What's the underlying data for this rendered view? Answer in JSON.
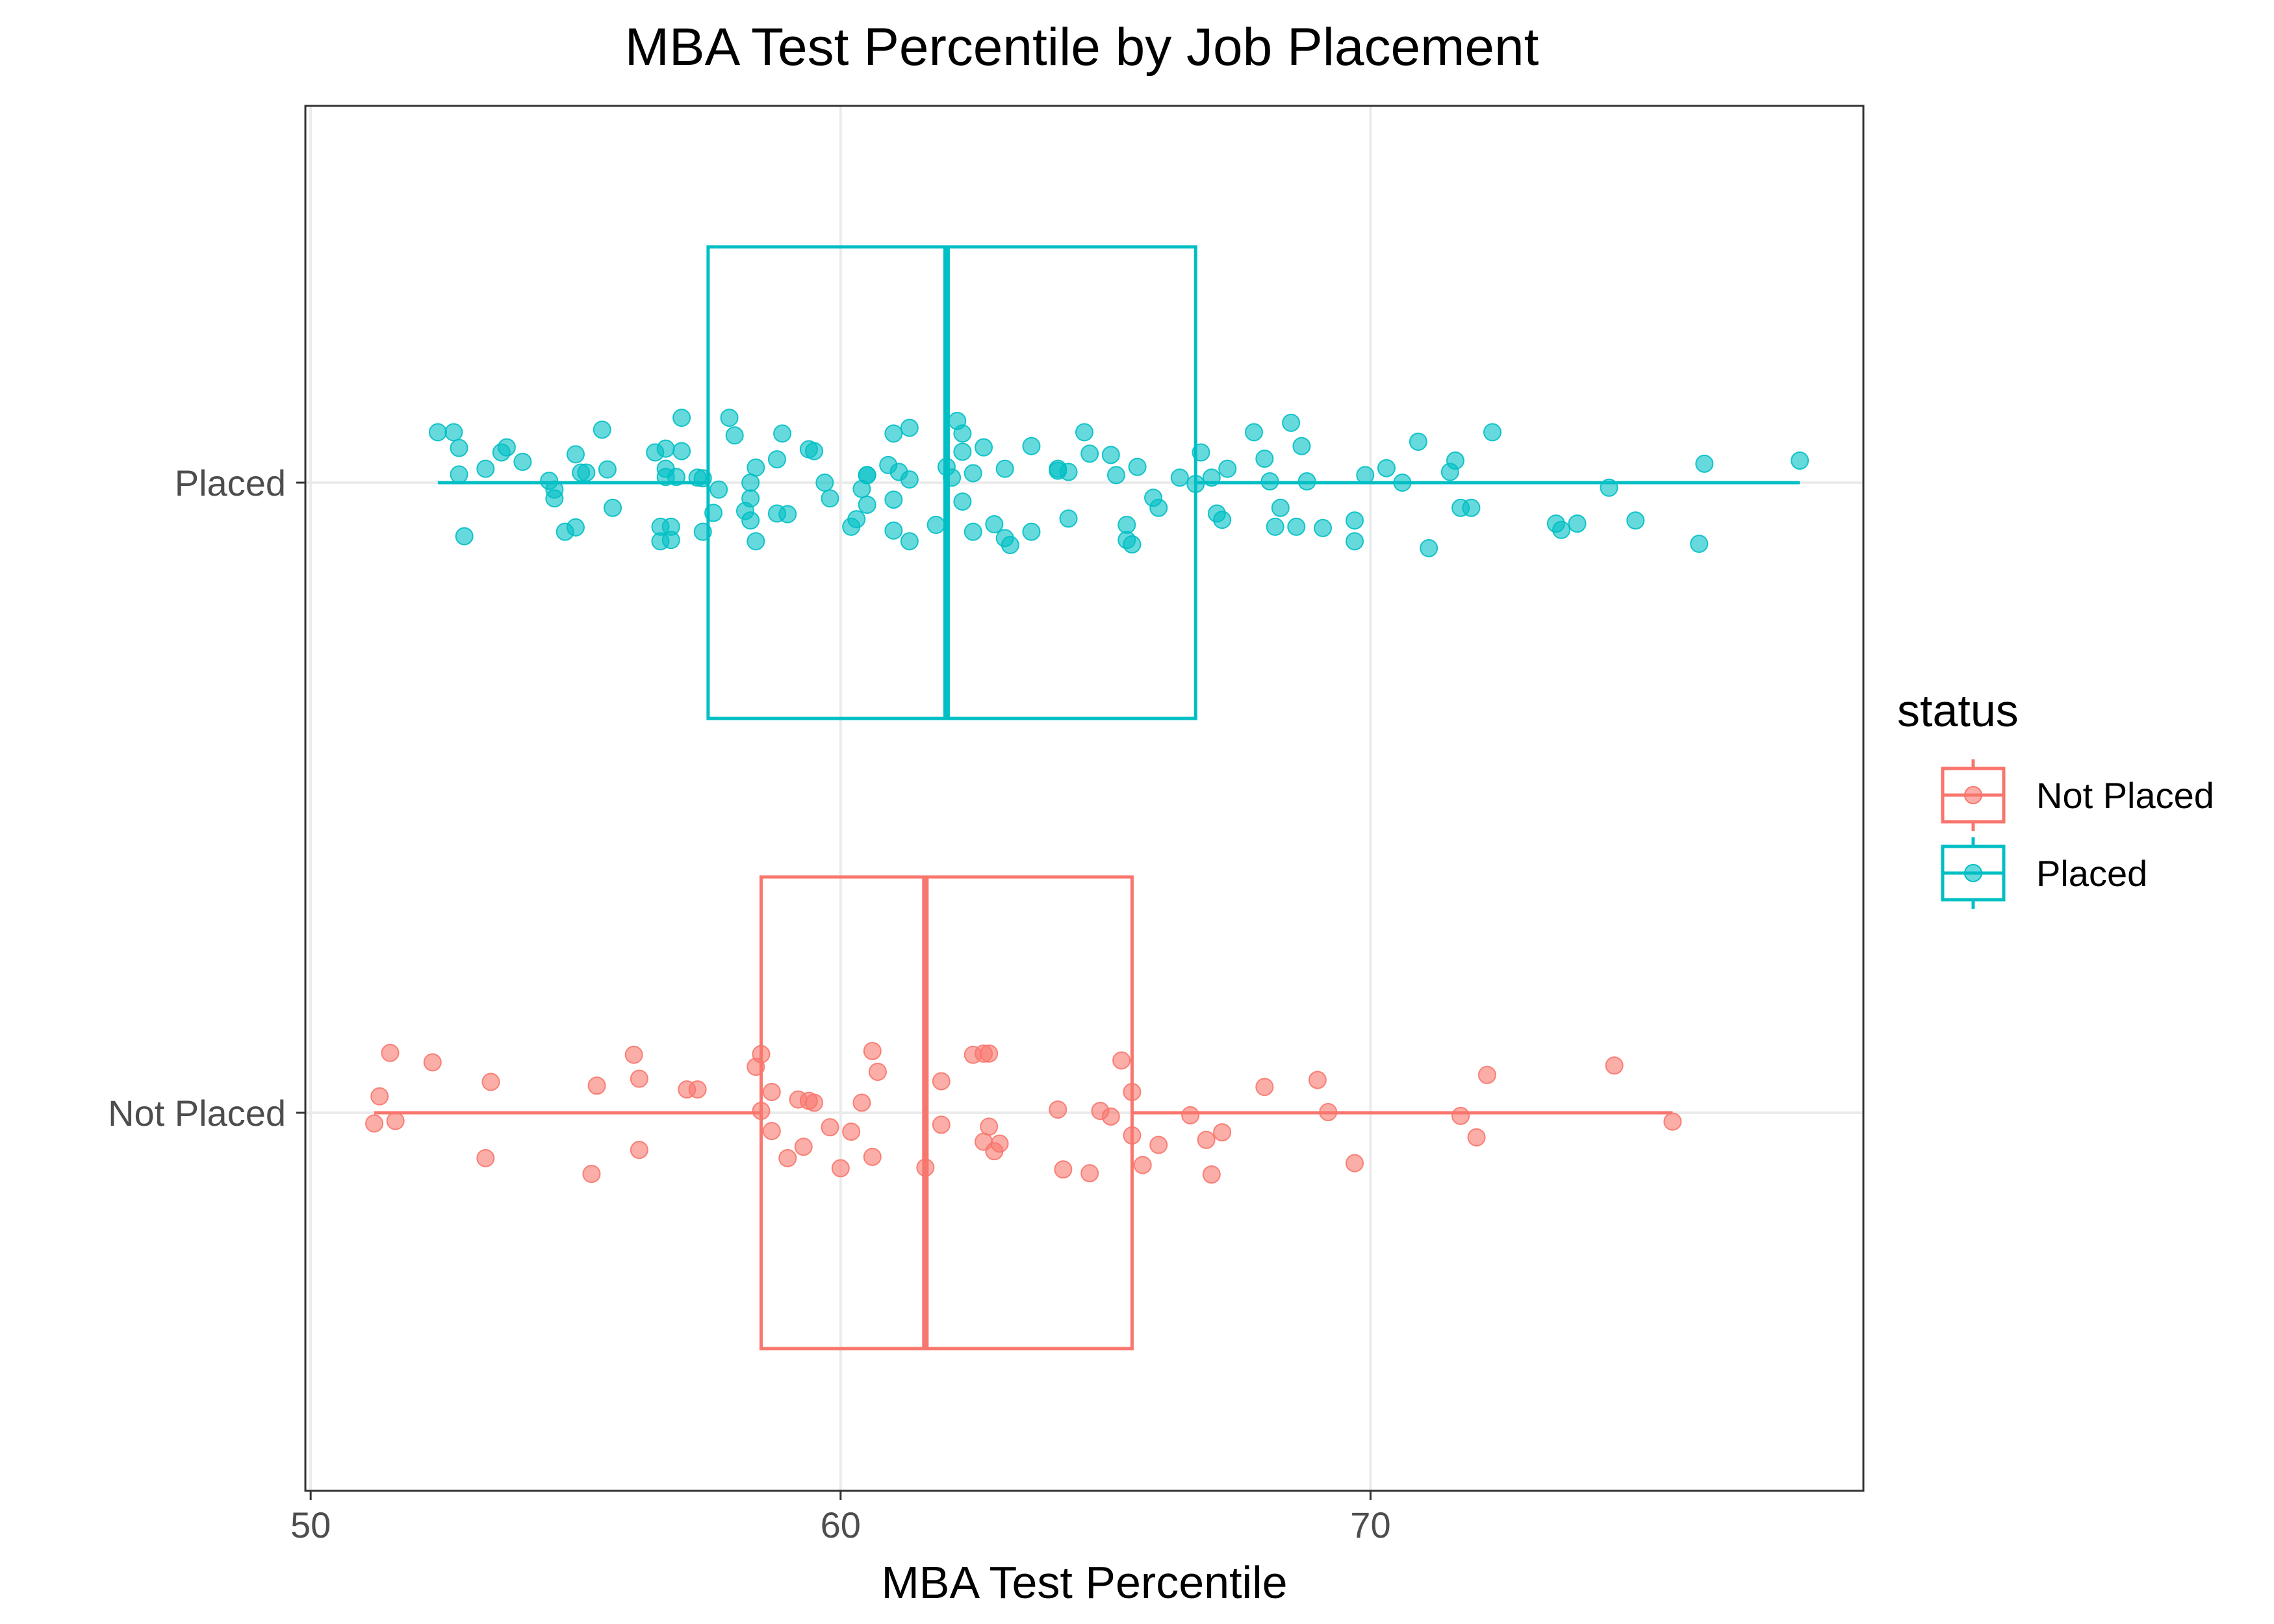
{
  "chart_data": {
    "type": "box",
    "orientation": "horizontal",
    "title": "MBA Test Percentile by Job Placement",
    "xlabel": "MBA Test Percentile",
    "ylabel": "",
    "xlim": [
      49.9,
      79.3
    ],
    "x_ticks": [
      "50",
      "60",
      "70"
    ],
    "x_tick_values": [
      50,
      60,
      70
    ],
    "categories": [
      "Not Placed",
      "Placed"
    ],
    "grid": true,
    "legend": {
      "title": "status",
      "position": "right",
      "entries": [
        "Not Placed",
        "Placed"
      ]
    },
    "series": [
      {
        "name": "Not Placed",
        "color": "#F8766D",
        "box": {
          "min": 51.2,
          "q1": 58.5,
          "median": 61.6,
          "q3": 65.5,
          "max": 75.7
        },
        "points": [
          {
            "x": 51.2,
            "y": -0.017
          },
          {
            "x": 51.3,
            "y": 0.026
          },
          {
            "x": 51.5,
            "y": 0.095
          },
          {
            "x": 51.6,
            "y": -0.013
          },
          {
            "x": 52.3,
            "y": 0.08
          },
          {
            "x": 53.3,
            "y": -0.072
          },
          {
            "x": 53.4,
            "y": 0.049
          },
          {
            "x": 55.3,
            "y": -0.097
          },
          {
            "x": 55.4,
            "y": 0.043
          },
          {
            "x": 56.1,
            "y": 0.092
          },
          {
            "x": 56.2,
            "y": 0.054
          },
          {
            "x": 56.2,
            "y": -0.059
          },
          {
            "x": 57.1,
            "y": 0.037
          },
          {
            "x": 57.3,
            "y": 0.037
          },
          {
            "x": 58.4,
            "y": 0.073
          },
          {
            "x": 58.5,
            "y": 0.093
          },
          {
            "x": 58.5,
            "y": 0.003
          },
          {
            "x": 58.7,
            "y": 0.033
          },
          {
            "x": 58.7,
            "y": -0.029
          },
          {
            "x": 59.0,
            "y": -0.072
          },
          {
            "x": 59.2,
            "y": 0.021
          },
          {
            "x": 59.3,
            "y": -0.054
          },
          {
            "x": 59.4,
            "y": 0.019
          },
          {
            "x": 59.5,
            "y": 0.016
          },
          {
            "x": 59.8,
            "y": -0.023
          },
          {
            "x": 60.0,
            "y": -0.088
          },
          {
            "x": 60.2,
            "y": -0.03
          },
          {
            "x": 60.4,
            "y": 0.016
          },
          {
            "x": 60.6,
            "y": 0.098
          },
          {
            "x": 60.6,
            "y": -0.07
          },
          {
            "x": 60.7,
            "y": 0.065
          },
          {
            "x": 61.6,
            "y": -0.087
          },
          {
            "x": 61.9,
            "y": -0.019
          },
          {
            "x": 61.9,
            "y": 0.05
          },
          {
            "x": 62.5,
            "y": 0.092
          },
          {
            "x": 62.7,
            "y": -0.046
          },
          {
            "x": 62.7,
            "y": 0.094
          },
          {
            "x": 62.8,
            "y": 0.094
          },
          {
            "x": 62.8,
            "y": -0.022
          },
          {
            "x": 62.9,
            "y": -0.061
          },
          {
            "x": 63.0,
            "y": -0.049
          },
          {
            "x": 64.1,
            "y": 0.005
          },
          {
            "x": 64.2,
            "y": -0.09
          },
          {
            "x": 64.7,
            "y": -0.096
          },
          {
            "x": 64.9,
            "y": 0.003
          },
          {
            "x": 65.1,
            "y": -0.006
          },
          {
            "x": 65.3,
            "y": 0.083
          },
          {
            "x": 65.5,
            "y": 0.033
          },
          {
            "x": 65.5,
            "y": -0.036
          },
          {
            "x": 65.7,
            "y": -0.083
          },
          {
            "x": 66.0,
            "y": -0.051
          },
          {
            "x": 66.6,
            "y": -0.004
          },
          {
            "x": 66.9,
            "y": -0.043
          },
          {
            "x": 67.0,
            "y": -0.098
          },
          {
            "x": 67.2,
            "y": -0.031
          },
          {
            "x": 68.0,
            "y": 0.041
          },
          {
            "x": 69.0,
            "y": 0.052
          },
          {
            "x": 69.2,
            "y": 0.001
          },
          {
            "x": 69.7,
            "y": -0.08
          },
          {
            "x": 71.7,
            "y": -0.005
          },
          {
            "x": 72.0,
            "y": -0.039
          },
          {
            "x": 72.2,
            "y": 0.06
          },
          {
            "x": 74.6,
            "y": 0.075
          },
          {
            "x": 75.7,
            "y": -0.014
          }
        ]
      },
      {
        "name": "Placed",
        "color": "#00BFC4",
        "box": {
          "min": 52.4,
          "q1": 57.5,
          "median": 62.0,
          "q3": 66.7,
          "max": 78.1
        },
        "points": [
          {
            "x": 52.4,
            "y": 0.08
          },
          {
            "x": 52.7,
            "y": 0.08
          },
          {
            "x": 52.8,
            "y": 0.055
          },
          {
            "x": 52.8,
            "y": 0.013
          },
          {
            "x": 52.9,
            "y": -0.085
          },
          {
            "x": 53.3,
            "y": 0.022
          },
          {
            "x": 53.6,
            "y": 0.048
          },
          {
            "x": 53.7,
            "y": 0.056
          },
          {
            "x": 54.0,
            "y": 0.033
          },
          {
            "x": 54.5,
            "y": 0.003
          },
          {
            "x": 54.6,
            "y": -0.011
          },
          {
            "x": 54.6,
            "y": -0.025
          },
          {
            "x": 54.8,
            "y": -0.078
          },
          {
            "x": 55.0,
            "y": 0.045
          },
          {
            "x": 55.0,
            "y": -0.071
          },
          {
            "x": 55.1,
            "y": 0.016
          },
          {
            "x": 55.2,
            "y": 0.016
          },
          {
            "x": 55.5,
            "y": 0.084
          },
          {
            "x": 55.6,
            "y": 0.021
          },
          {
            "x": 55.7,
            "y": -0.04
          },
          {
            "x": 56.5,
            "y": 0.048
          },
          {
            "x": 56.6,
            "y": -0.07
          },
          {
            "x": 56.6,
            "y": -0.093
          },
          {
            "x": 56.7,
            "y": 0.054
          },
          {
            "x": 56.7,
            "y": 0.022
          },
          {
            "x": 56.7,
            "y": 0.009
          },
          {
            "x": 56.8,
            "y": -0.07
          },
          {
            "x": 56.8,
            "y": -0.091
          },
          {
            "x": 56.9,
            "y": 0.009
          },
          {
            "x": 57.0,
            "y": 0.05
          },
          {
            "x": 57.0,
            "y": 0.103
          },
          {
            "x": 57.3,
            "y": 0.008
          },
          {
            "x": 57.4,
            "y": 0.007
          },
          {
            "x": 57.4,
            "y": -0.078
          },
          {
            "x": 57.6,
            "y": -0.048
          },
          {
            "x": 57.7,
            "y": -0.011
          },
          {
            "x": 57.9,
            "y": 0.103
          },
          {
            "x": 58.0,
            "y": 0.075
          },
          {
            "x": 58.2,
            "y": -0.045
          },
          {
            "x": 58.3,
            "y": -0.06
          },
          {
            "x": 58.3,
            "y": 0.0
          },
          {
            "x": 58.3,
            "y": -0.025
          },
          {
            "x": 58.4,
            "y": 0.024
          },
          {
            "x": 58.4,
            "y": -0.093
          },
          {
            "x": 58.8,
            "y": 0.037
          },
          {
            "x": 58.8,
            "y": -0.049
          },
          {
            "x": 58.9,
            "y": 0.078
          },
          {
            "x": 59.0,
            "y": -0.05
          },
          {
            "x": 59.4,
            "y": 0.053
          },
          {
            "x": 59.5,
            "y": 0.05
          },
          {
            "x": 59.7,
            "y": 0.0
          },
          {
            "x": 59.8,
            "y": -0.025
          },
          {
            "x": 60.2,
            "y": -0.07
          },
          {
            "x": 60.3,
            "y": -0.058
          },
          {
            "x": 60.4,
            "y": -0.01
          },
          {
            "x": 60.5,
            "y": 0.012
          },
          {
            "x": 60.5,
            "y": 0.012
          },
          {
            "x": 60.5,
            "y": -0.035
          },
          {
            "x": 60.9,
            "y": 0.028
          },
          {
            "x": 61.0,
            "y": -0.027
          },
          {
            "x": 61.0,
            "y": 0.078
          },
          {
            "x": 61.0,
            "y": -0.076
          },
          {
            "x": 61.1,
            "y": 0.017
          },
          {
            "x": 61.3,
            "y": 0.087
          },
          {
            "x": 61.3,
            "y": 0.005
          },
          {
            "x": 61.3,
            "y": -0.093
          },
          {
            "x": 61.8,
            "y": -0.067
          },
          {
            "x": 62.0,
            "y": 0.025
          },
          {
            "x": 62.1,
            "y": 0.008
          },
          {
            "x": 62.2,
            "y": 0.098
          },
          {
            "x": 62.3,
            "y": 0.078
          },
          {
            "x": 62.3,
            "y": 0.049
          },
          {
            "x": 62.3,
            "y": -0.03
          },
          {
            "x": 62.5,
            "y": -0.078
          },
          {
            "x": 62.5,
            "y": 0.015
          },
          {
            "x": 62.7,
            "y": 0.056
          },
          {
            "x": 62.9,
            "y": -0.066
          },
          {
            "x": 63.1,
            "y": 0.022
          },
          {
            "x": 63.1,
            "y": -0.088
          },
          {
            "x": 63.2,
            "y": -0.099
          },
          {
            "x": 63.6,
            "y": 0.058
          },
          {
            "x": 63.6,
            "y": -0.078
          },
          {
            "x": 64.1,
            "y": 0.022
          },
          {
            "x": 64.1,
            "y": 0.019
          },
          {
            "x": 64.3,
            "y": 0.017
          },
          {
            "x": 64.3,
            "y": -0.057
          },
          {
            "x": 64.6,
            "y": 0.08
          },
          {
            "x": 64.7,
            "y": 0.046
          },
          {
            "x": 65.1,
            "y": 0.044
          },
          {
            "x": 65.2,
            "y": 0.012
          },
          {
            "x": 65.4,
            "y": -0.067
          },
          {
            "x": 65.4,
            "y": -0.091
          },
          {
            "x": 65.5,
            "y": -0.098
          },
          {
            "x": 65.6,
            "y": 0.025
          },
          {
            "x": 65.9,
            "y": -0.024
          },
          {
            "x": 66.0,
            "y": -0.04
          },
          {
            "x": 66.4,
            "y": 0.008
          },
          {
            "x": 66.7,
            "y": -0.002
          },
          {
            "x": 66.8,
            "y": 0.048
          },
          {
            "x": 67.0,
            "y": 0.008
          },
          {
            "x": 67.1,
            "y": -0.049
          },
          {
            "x": 67.2,
            "y": -0.059
          },
          {
            "x": 67.3,
            "y": 0.022
          },
          {
            "x": 67.8,
            "y": 0.08
          },
          {
            "x": 68.0,
            "y": 0.038
          },
          {
            "x": 68.1,
            "y": 0.002
          },
          {
            "x": 68.2,
            "y": -0.07
          },
          {
            "x": 68.3,
            "y": -0.04
          },
          {
            "x": 68.5,
            "y": 0.095
          },
          {
            "x": 68.6,
            "y": -0.07
          },
          {
            "x": 68.7,
            "y": 0.058
          },
          {
            "x": 68.8,
            "y": 0.002
          },
          {
            "x": 69.1,
            "y": -0.072
          },
          {
            "x": 69.7,
            "y": -0.06
          },
          {
            "x": 69.7,
            "y": -0.093
          },
          {
            "x": 69.9,
            "y": 0.012
          },
          {
            "x": 70.3,
            "y": 0.023
          },
          {
            "x": 70.6,
            "y": 0.0
          },
          {
            "x": 70.9,
            "y": 0.065
          },
          {
            "x": 71.1,
            "y": -0.104
          },
          {
            "x": 71.5,
            "y": 0.017
          },
          {
            "x": 71.6,
            "y": 0.035
          },
          {
            "x": 71.7,
            "y": -0.04
          },
          {
            "x": 71.9,
            "y": -0.04
          },
          {
            "x": 72.3,
            "y": 0.08
          },
          {
            "x": 73.5,
            "y": -0.065
          },
          {
            "x": 73.6,
            "y": -0.075
          },
          {
            "x": 73.9,
            "y": -0.065
          },
          {
            "x": 74.5,
            "y": -0.008
          },
          {
            "x": 75.0,
            "y": -0.06
          },
          {
            "x": 76.2,
            "y": -0.097
          },
          {
            "x": 76.3,
            "y": 0.03
          },
          {
            "x": 78.1,
            "y": 0.035
          }
        ]
      }
    ]
  }
}
